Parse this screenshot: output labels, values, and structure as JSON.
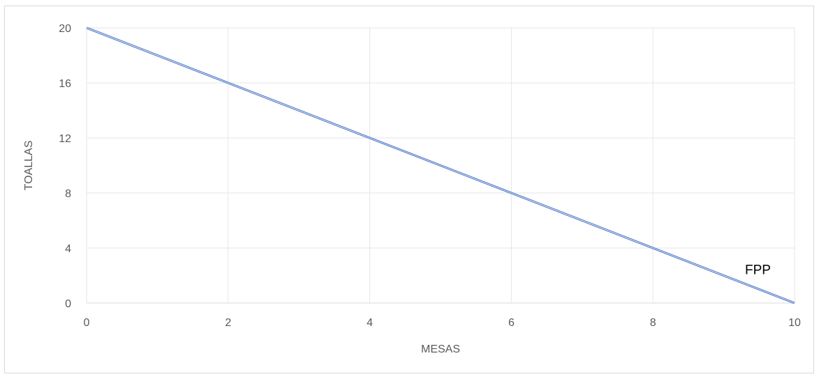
{
  "chart_data": {
    "type": "line",
    "title": "",
    "xlabel": "MESAS",
    "ylabel": "TOALLAS",
    "x_ticks": [
      "0",
      "2",
      "4",
      "6",
      "8",
      "10"
    ],
    "y_ticks": [
      "0",
      "4",
      "8",
      "12",
      "16",
      "20"
    ],
    "xlim": [
      0,
      10
    ],
    "ylim": [
      0,
      20
    ],
    "grid": true,
    "series": [
      {
        "x": [
          0,
          2,
          4,
          6,
          8,
          10
        ],
        "y": [
          20,
          16,
          12,
          8,
          4,
          0
        ],
        "color": "#4472c4"
      }
    ],
    "annotations": [
      {
        "text": "FPP",
        "x": 9.3,
        "y": 2.1
      }
    ]
  }
}
